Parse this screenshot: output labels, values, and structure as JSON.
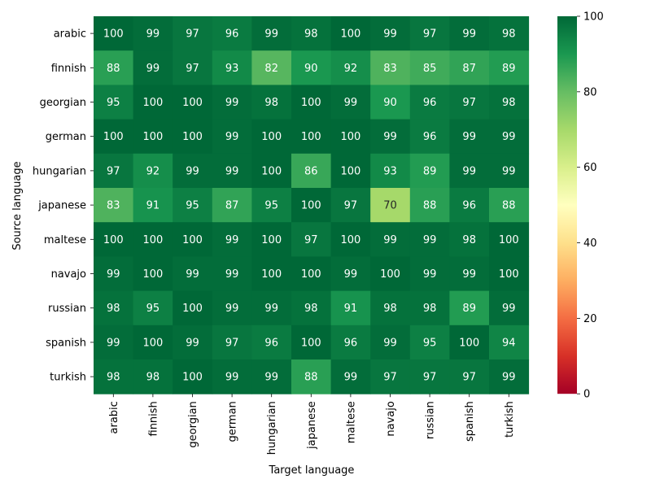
{
  "chart_data": {
    "type": "heatmap",
    "xlabel": "Target language",
    "ylabel": "Source language",
    "x_categories": [
      "arabic",
      "finnish",
      "georgian",
      "german",
      "hungarian",
      "japanese",
      "maltese",
      "navajo",
      "russian",
      "spanish",
      "turkish"
    ],
    "y_categories": [
      "arabic",
      "finnish",
      "georgian",
      "german",
      "hungarian",
      "japanese",
      "maltese",
      "navajo",
      "russian",
      "spanish",
      "turkish"
    ],
    "values": [
      [
        100,
        99,
        97,
        96,
        99,
        98,
        100,
        99,
        97,
        99,
        98
      ],
      [
        88,
        99,
        97,
        93,
        82,
        90,
        92,
        83,
        85,
        87,
        89
      ],
      [
        95,
        100,
        100,
        99,
        98,
        100,
        99,
        90,
        96,
        97,
        98
      ],
      [
        100,
        100,
        100,
        99,
        100,
        100,
        100,
        99,
        96,
        99,
        99
      ],
      [
        97,
        92,
        99,
        99,
        100,
        86,
        100,
        93,
        89,
        99,
        99
      ],
      [
        83,
        91,
        95,
        87,
        95,
        100,
        97,
        70,
        88,
        96,
        88
      ],
      [
        100,
        100,
        100,
        99,
        100,
        97,
        100,
        99,
        99,
        98,
        100
      ],
      [
        99,
        100,
        99,
        99,
        100,
        100,
        99,
        100,
        99,
        99,
        100
      ],
      [
        98,
        95,
        100,
        99,
        99,
        98,
        91,
        98,
        98,
        89,
        99
      ],
      [
        99,
        100,
        99,
        97,
        96,
        100,
        96,
        99,
        95,
        100,
        94
      ],
      [
        98,
        98,
        100,
        99,
        99,
        88,
        99,
        97,
        97,
        97,
        99
      ]
    ],
    "colorbar": {
      "range": [
        0,
        100
      ],
      "ticks": [
        0,
        20,
        40,
        60,
        80,
        100
      ],
      "colormap": "RdYlGn"
    },
    "cell_annotations": true,
    "grid": false
  }
}
